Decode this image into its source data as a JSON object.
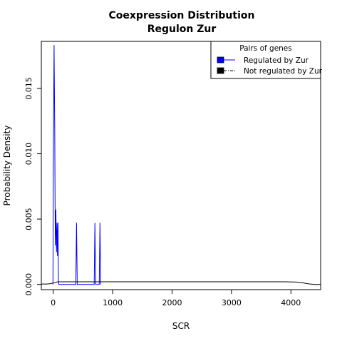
{
  "chart_data": {
    "type": "line",
    "title": "Coexpression Distribution",
    "subtitle": "Regulon Zur",
    "xlabel": "SCR",
    "ylabel": "Probability Density",
    "xlim": [
      -200,
      4500
    ],
    "ylim": [
      -0.0004,
      0.0186
    ],
    "x_ticks": [
      0,
      1000,
      2000,
      3000,
      4000
    ],
    "y_ticks": [
      0.0,
      0.005,
      0.01,
      0.015
    ],
    "x_tick_labels": [
      "0",
      "1000",
      "2000",
      "3000",
      "4000"
    ],
    "y_tick_labels": [
      "0.000",
      "0.005",
      "0.010",
      "0.015"
    ],
    "legend": {
      "title": "Pairs of genes",
      "position": "top-right",
      "entries": [
        "Regulated by  Zur",
        "Not regulated by  Zur"
      ]
    },
    "series": [
      {
        "name": "Regulated by  Zur",
        "color": "#0000ff",
        "points": [
          [
            -5,
            0.0
          ],
          [
            5,
            0.012
          ],
          [
            15,
            0.0183
          ],
          [
            25,
            0.012
          ],
          [
            35,
            0.003
          ],
          [
            45,
            0.0057
          ],
          [
            55,
            0.0025
          ],
          [
            65,
            0.0047
          ],
          [
            72,
            0.0022
          ],
          [
            80,
            0.0047
          ],
          [
            88,
            0.0002
          ],
          [
            95,
            0.0
          ],
          [
            380,
            0.0
          ],
          [
            392,
            0.0047
          ],
          [
            404,
            0.0
          ],
          [
            690,
            0.0
          ],
          [
            702,
            0.0047
          ],
          [
            714,
            0.0
          ],
          [
            775,
            0.0
          ],
          [
            787,
            0.0047
          ],
          [
            799,
            0.0
          ]
        ]
      },
      {
        "name": "Not regulated by  Zur",
        "color": "#000000",
        "points": [
          [
            -200,
            3e-05
          ],
          [
            -100,
            3e-05
          ],
          [
            -50,
            6e-05
          ],
          [
            0,
            0.0001
          ],
          [
            40,
            0.00016
          ],
          [
            80,
            0.0002
          ],
          [
            200,
            0.0002
          ],
          [
            1000,
            0.0002
          ],
          [
            2000,
            0.0002
          ],
          [
            3000,
            0.0002
          ],
          [
            3900,
            0.0002
          ],
          [
            4100,
            0.00018
          ],
          [
            4200,
            0.00012
          ],
          [
            4300,
            4e-05
          ],
          [
            4400,
            0.0
          ],
          [
            4500,
            0.0
          ]
        ]
      }
    ]
  }
}
